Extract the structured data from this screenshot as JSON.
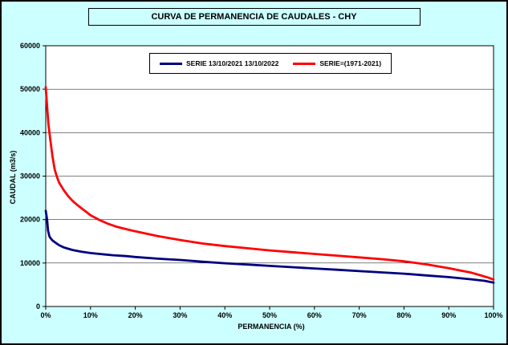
{
  "chart_data": {
    "type": "line",
    "title": "CURVA DE PERMANENCIA DE CAUDALES - CHY",
    "xlabel": "PERMANENCIA (%)",
    "ylabel": "CAUDAL (m3/s)",
    "xlim": [
      0,
      100
    ],
    "ylim": [
      0,
      60000
    ],
    "x_ticks": [
      0,
      10,
      20,
      30,
      40,
      50,
      60,
      70,
      80,
      90,
      100
    ],
    "x_tick_labels": [
      "0%",
      "10%",
      "20%",
      "30%",
      "40%",
      "50%",
      "60%",
      "70%",
      "80%",
      "90%",
      "100%"
    ],
    "y_ticks": [
      0,
      10000,
      20000,
      30000,
      40000,
      50000,
      60000
    ],
    "y_tick_labels": [
      "0",
      "10000",
      "20000",
      "30000",
      "40000",
      "50000",
      "60000"
    ],
    "grid": "horizontal",
    "legend_position": "top-inside",
    "background_color": "#CCFFFF",
    "plot_background": "#FFFFFF",
    "series": [
      {
        "name": "SERIE 13/10/2021 13/10/2022",
        "color": "#000080",
        "points": [
          [
            0,
            22000
          ],
          [
            0.3,
            20000
          ],
          [
            0.5,
            17500
          ],
          [
            0.8,
            16200
          ],
          [
            1,
            15800
          ],
          [
            1.5,
            15200
          ],
          [
            2,
            14800
          ],
          [
            3,
            14100
          ],
          [
            4,
            13600
          ],
          [
            5,
            13300
          ],
          [
            6,
            13000
          ],
          [
            8,
            12600
          ],
          [
            10,
            12300
          ],
          [
            12,
            12100
          ],
          [
            15,
            11800
          ],
          [
            18,
            11600
          ],
          [
            20,
            11400
          ],
          [
            25,
            11000
          ],
          [
            30,
            10700
          ],
          [
            35,
            10300
          ],
          [
            40,
            9950
          ],
          [
            45,
            9650
          ],
          [
            50,
            9350
          ],
          [
            55,
            9050
          ],
          [
            60,
            8750
          ],
          [
            65,
            8450
          ],
          [
            70,
            8150
          ],
          [
            75,
            7850
          ],
          [
            80,
            7550
          ],
          [
            85,
            7150
          ],
          [
            90,
            6750
          ],
          [
            95,
            6250
          ],
          [
            98,
            5900
          ],
          [
            100,
            5500
          ]
        ]
      },
      {
        "name": "SERIE=(1971-2021)",
        "color": "#FF0000",
        "points": [
          [
            0,
            50500
          ],
          [
            0.3,
            46000
          ],
          [
            0.6,
            42000
          ],
          [
            1,
            38500
          ],
          [
            1.5,
            34500
          ],
          [
            2,
            31500
          ],
          [
            2.5,
            29800
          ],
          [
            3,
            28500
          ],
          [
            4,
            26800
          ],
          [
            5,
            25400
          ],
          [
            6,
            24300
          ],
          [
            7,
            23400
          ],
          [
            8,
            22600
          ],
          [
            9,
            21800
          ],
          [
            10,
            21000
          ],
          [
            12,
            19900
          ],
          [
            14,
            19000
          ],
          [
            16,
            18300
          ],
          [
            18,
            17800
          ],
          [
            20,
            17300
          ],
          [
            25,
            16200
          ],
          [
            30,
            15300
          ],
          [
            35,
            14500
          ],
          [
            40,
            13900
          ],
          [
            45,
            13400
          ],
          [
            50,
            12900
          ],
          [
            55,
            12500
          ],
          [
            60,
            12100
          ],
          [
            65,
            11700
          ],
          [
            70,
            11300
          ],
          [
            75,
            10900
          ],
          [
            80,
            10400
          ],
          [
            85,
            9700
          ],
          [
            90,
            8800
          ],
          [
            93,
            8200
          ],
          [
            95,
            7800
          ],
          [
            97,
            7200
          ],
          [
            99,
            6600
          ],
          [
            100,
            6200
          ]
        ]
      }
    ]
  }
}
